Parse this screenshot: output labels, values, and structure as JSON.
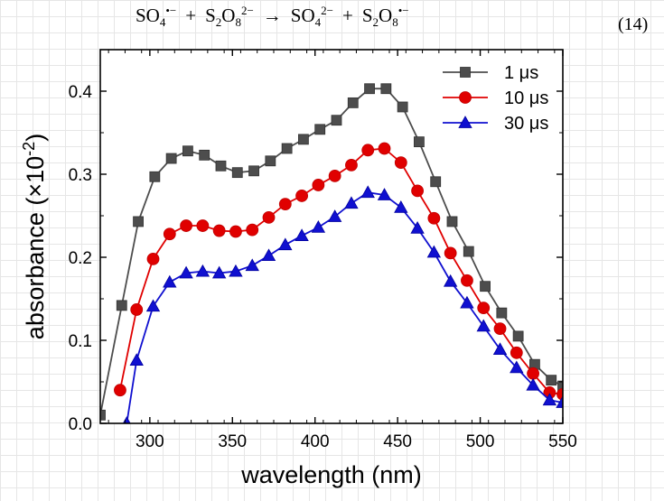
{
  "equation": {
    "reactant1_base": "SO",
    "reactant1_sub": "4",
    "reactant1_sup": "•−",
    "plus1": "+",
    "reactant2_base_s": "S",
    "reactant2_sub_s": "2",
    "reactant2_base_o": "O",
    "reactant2_sub_o": "8",
    "reactant2_sup": "2−",
    "arrow": "→",
    "product1_base": "SO",
    "product1_sub": "4",
    "product1_sup": "2−",
    "plus2": "+",
    "product2_base_s": "S",
    "product2_sub_s": "2",
    "product2_base_o": "O",
    "product2_sub_o": "8",
    "product2_sup": "•−",
    "number": "(14)"
  },
  "chart_data": {
    "type": "line",
    "title": "",
    "xlabel": "wavelength (nm)",
    "ylabel": "absorbance (×10-2)",
    "ylabel_parts": {
      "prefix": "absorbance (×10",
      "sup": "-2",
      "suffix": ")"
    },
    "xlim": [
      270,
      550
    ],
    "ylim": [
      0,
      0.45
    ],
    "xticks": [
      300,
      350,
      400,
      450,
      500,
      550
    ],
    "yticks": [
      0.0,
      0.1,
      0.2,
      0.3,
      0.4
    ],
    "ytick_labels": [
      "0.0",
      "0.1",
      "0.2",
      "0.3",
      "0.4"
    ],
    "legend_position": "top-right",
    "series": [
      {
        "name": "1 μs",
        "color": "#4d4d4d",
        "marker": "square",
        "x": [
          270,
          283,
          293,
          303,
          313,
          323,
          333,
          343,
          353,
          363,
          373,
          383,
          393,
          403,
          413,
          423,
          433,
          443,
          453,
          463,
          473,
          483,
          493,
          503,
          513,
          523,
          533,
          543,
          550
        ],
        "y": [
          0.01,
          0.142,
          0.243,
          0.297,
          0.319,
          0.328,
          0.323,
          0.31,
          0.302,
          0.304,
          0.316,
          0.331,
          0.342,
          0.354,
          0.365,
          0.386,
          0.403,
          0.403,
          0.381,
          0.339,
          0.291,
          0.243,
          0.207,
          0.165,
          0.133,
          0.105,
          0.071,
          0.052,
          0.045
        ]
      },
      {
        "name": "10 μs",
        "color": "#e00000",
        "marker": "circle",
        "x": [
          282,
          292,
          302,
          312,
          322,
          332,
          342,
          352,
          362,
          372,
          382,
          392,
          402,
          412,
          422,
          432,
          442,
          452,
          462,
          472,
          482,
          492,
          502,
          512,
          522,
          532,
          542,
          550
        ],
        "y": [
          0.04,
          0.137,
          0.198,
          0.228,
          0.238,
          0.238,
          0.232,
          0.231,
          0.233,
          0.248,
          0.264,
          0.274,
          0.287,
          0.298,
          0.311,
          0.329,
          0.331,
          0.314,
          0.28,
          0.247,
          0.205,
          0.172,
          0.139,
          0.114,
          0.085,
          0.06,
          0.037,
          0.035
        ]
      },
      {
        "name": "30 μs",
        "color": "#1010d0",
        "marker": "triangle",
        "x": [
          286,
          292,
          302,
          312,
          322,
          332,
          342,
          352,
          362,
          372,
          382,
          392,
          402,
          412,
          422,
          432,
          442,
          452,
          462,
          472,
          482,
          492,
          502,
          512,
          522,
          532,
          542,
          550
        ],
        "y": [
          0.0,
          0.076,
          0.141,
          0.17,
          0.181,
          0.183,
          0.181,
          0.183,
          0.19,
          0.202,
          0.215,
          0.226,
          0.236,
          0.249,
          0.265,
          0.278,
          0.275,
          0.26,
          0.235,
          0.206,
          0.171,
          0.145,
          0.117,
          0.089,
          0.067,
          0.046,
          0.028,
          0.025
        ]
      }
    ]
  }
}
